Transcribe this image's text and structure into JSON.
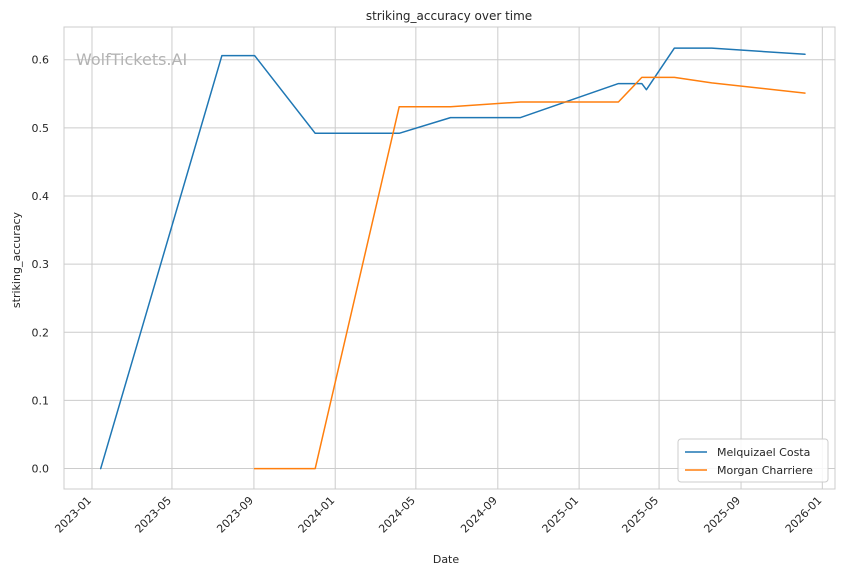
{
  "chart_data": {
    "type": "line",
    "title": "striking_accuracy over time",
    "xlabel": "Date",
    "ylabel": "striking_accuracy",
    "watermark": "WolfTickets.AI",
    "xlim": [
      "2022-11-20",
      "2026-01-20"
    ],
    "ylim": [
      -0.03,
      0.648
    ],
    "x_ticks": [
      "2023-01",
      "2023-05",
      "2023-09",
      "2024-01",
      "2024-05",
      "2024-09",
      "2025-01",
      "2025-05",
      "2025-09",
      "2026-01"
    ],
    "y_ticks": [
      0.0,
      0.1,
      0.2,
      0.3,
      0.4,
      0.5,
      0.6
    ],
    "grid": true,
    "legend_position": "bottom-right",
    "series": [
      {
        "name": "Melquizael Costa",
        "color": "#1f77b4",
        "points": [
          [
            "2023-01-14",
            0.0
          ],
          [
            "2023-07-15",
            0.606
          ],
          [
            "2023-09-02",
            0.606
          ],
          [
            "2023-12-02",
            0.492
          ],
          [
            "2024-04-06",
            0.492
          ],
          [
            "2024-06-22",
            0.515
          ],
          [
            "2024-10-05",
            0.515
          ],
          [
            "2025-03-01",
            0.565
          ],
          [
            "2025-04-05",
            0.565
          ],
          [
            "2025-04-12",
            0.556
          ],
          [
            "2025-05-24",
            0.617
          ],
          [
            "2025-07-19",
            0.617
          ],
          [
            "2025-12-06",
            0.608
          ]
        ]
      },
      {
        "name": "Morgan Charriere",
        "color": "#ff7f0e",
        "points": [
          [
            "2023-09-02",
            0.0
          ],
          [
            "2023-12-02",
            0.0
          ],
          [
            "2024-04-06",
            0.531
          ],
          [
            "2024-06-22",
            0.531
          ],
          [
            "2024-10-05",
            0.538
          ],
          [
            "2025-03-01",
            0.538
          ],
          [
            "2025-04-05",
            0.574
          ],
          [
            "2025-05-24",
            0.574
          ],
          [
            "2025-07-19",
            0.566
          ],
          [
            "2025-12-06",
            0.551
          ]
        ]
      }
    ]
  }
}
